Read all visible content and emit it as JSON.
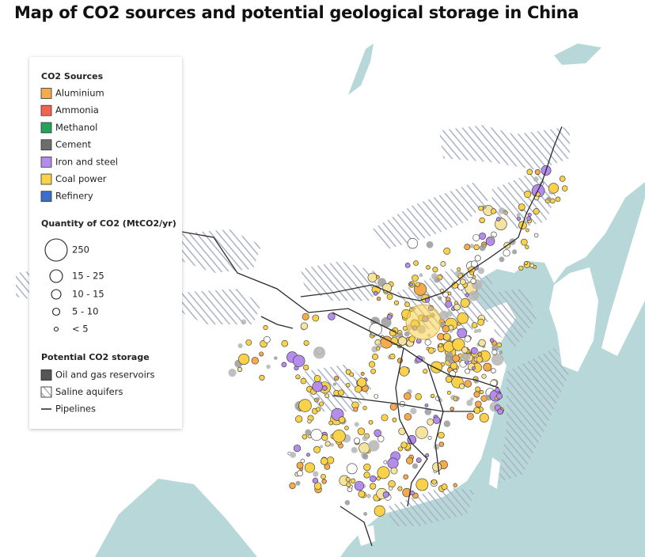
{
  "title": "Map of CO2 sources and potential geological storage in China",
  "legend": {
    "sources_title": "CO2 Sources",
    "sources": [
      {
        "label": "Aluminium",
        "color": "#f5aa4b"
      },
      {
        "label": "Ammonia",
        "color": "#f2644f"
      },
      {
        "label": "Methanol",
        "color": "#25a35a"
      },
      {
        "label": "Cement",
        "color": "#6d6d6d"
      },
      {
        "label": "Iron and steel",
        "color": "#b48cec"
      },
      {
        "label": "Coal power",
        "color": "#f9d24a"
      },
      {
        "label": "Refinery",
        "color": "#3a70c8"
      }
    ],
    "quantity_title": "Quantity of CO2 (MtCO2/yr)",
    "quantities": [
      "250",
      "15 - 25",
      "10 - 15",
      "5 - 10",
      "< 5"
    ],
    "storage_title": "Potential CO2 storage",
    "storage": [
      "Oil and gas reservoirs",
      "Saline aquifers",
      "Pipelines"
    ]
  }
}
